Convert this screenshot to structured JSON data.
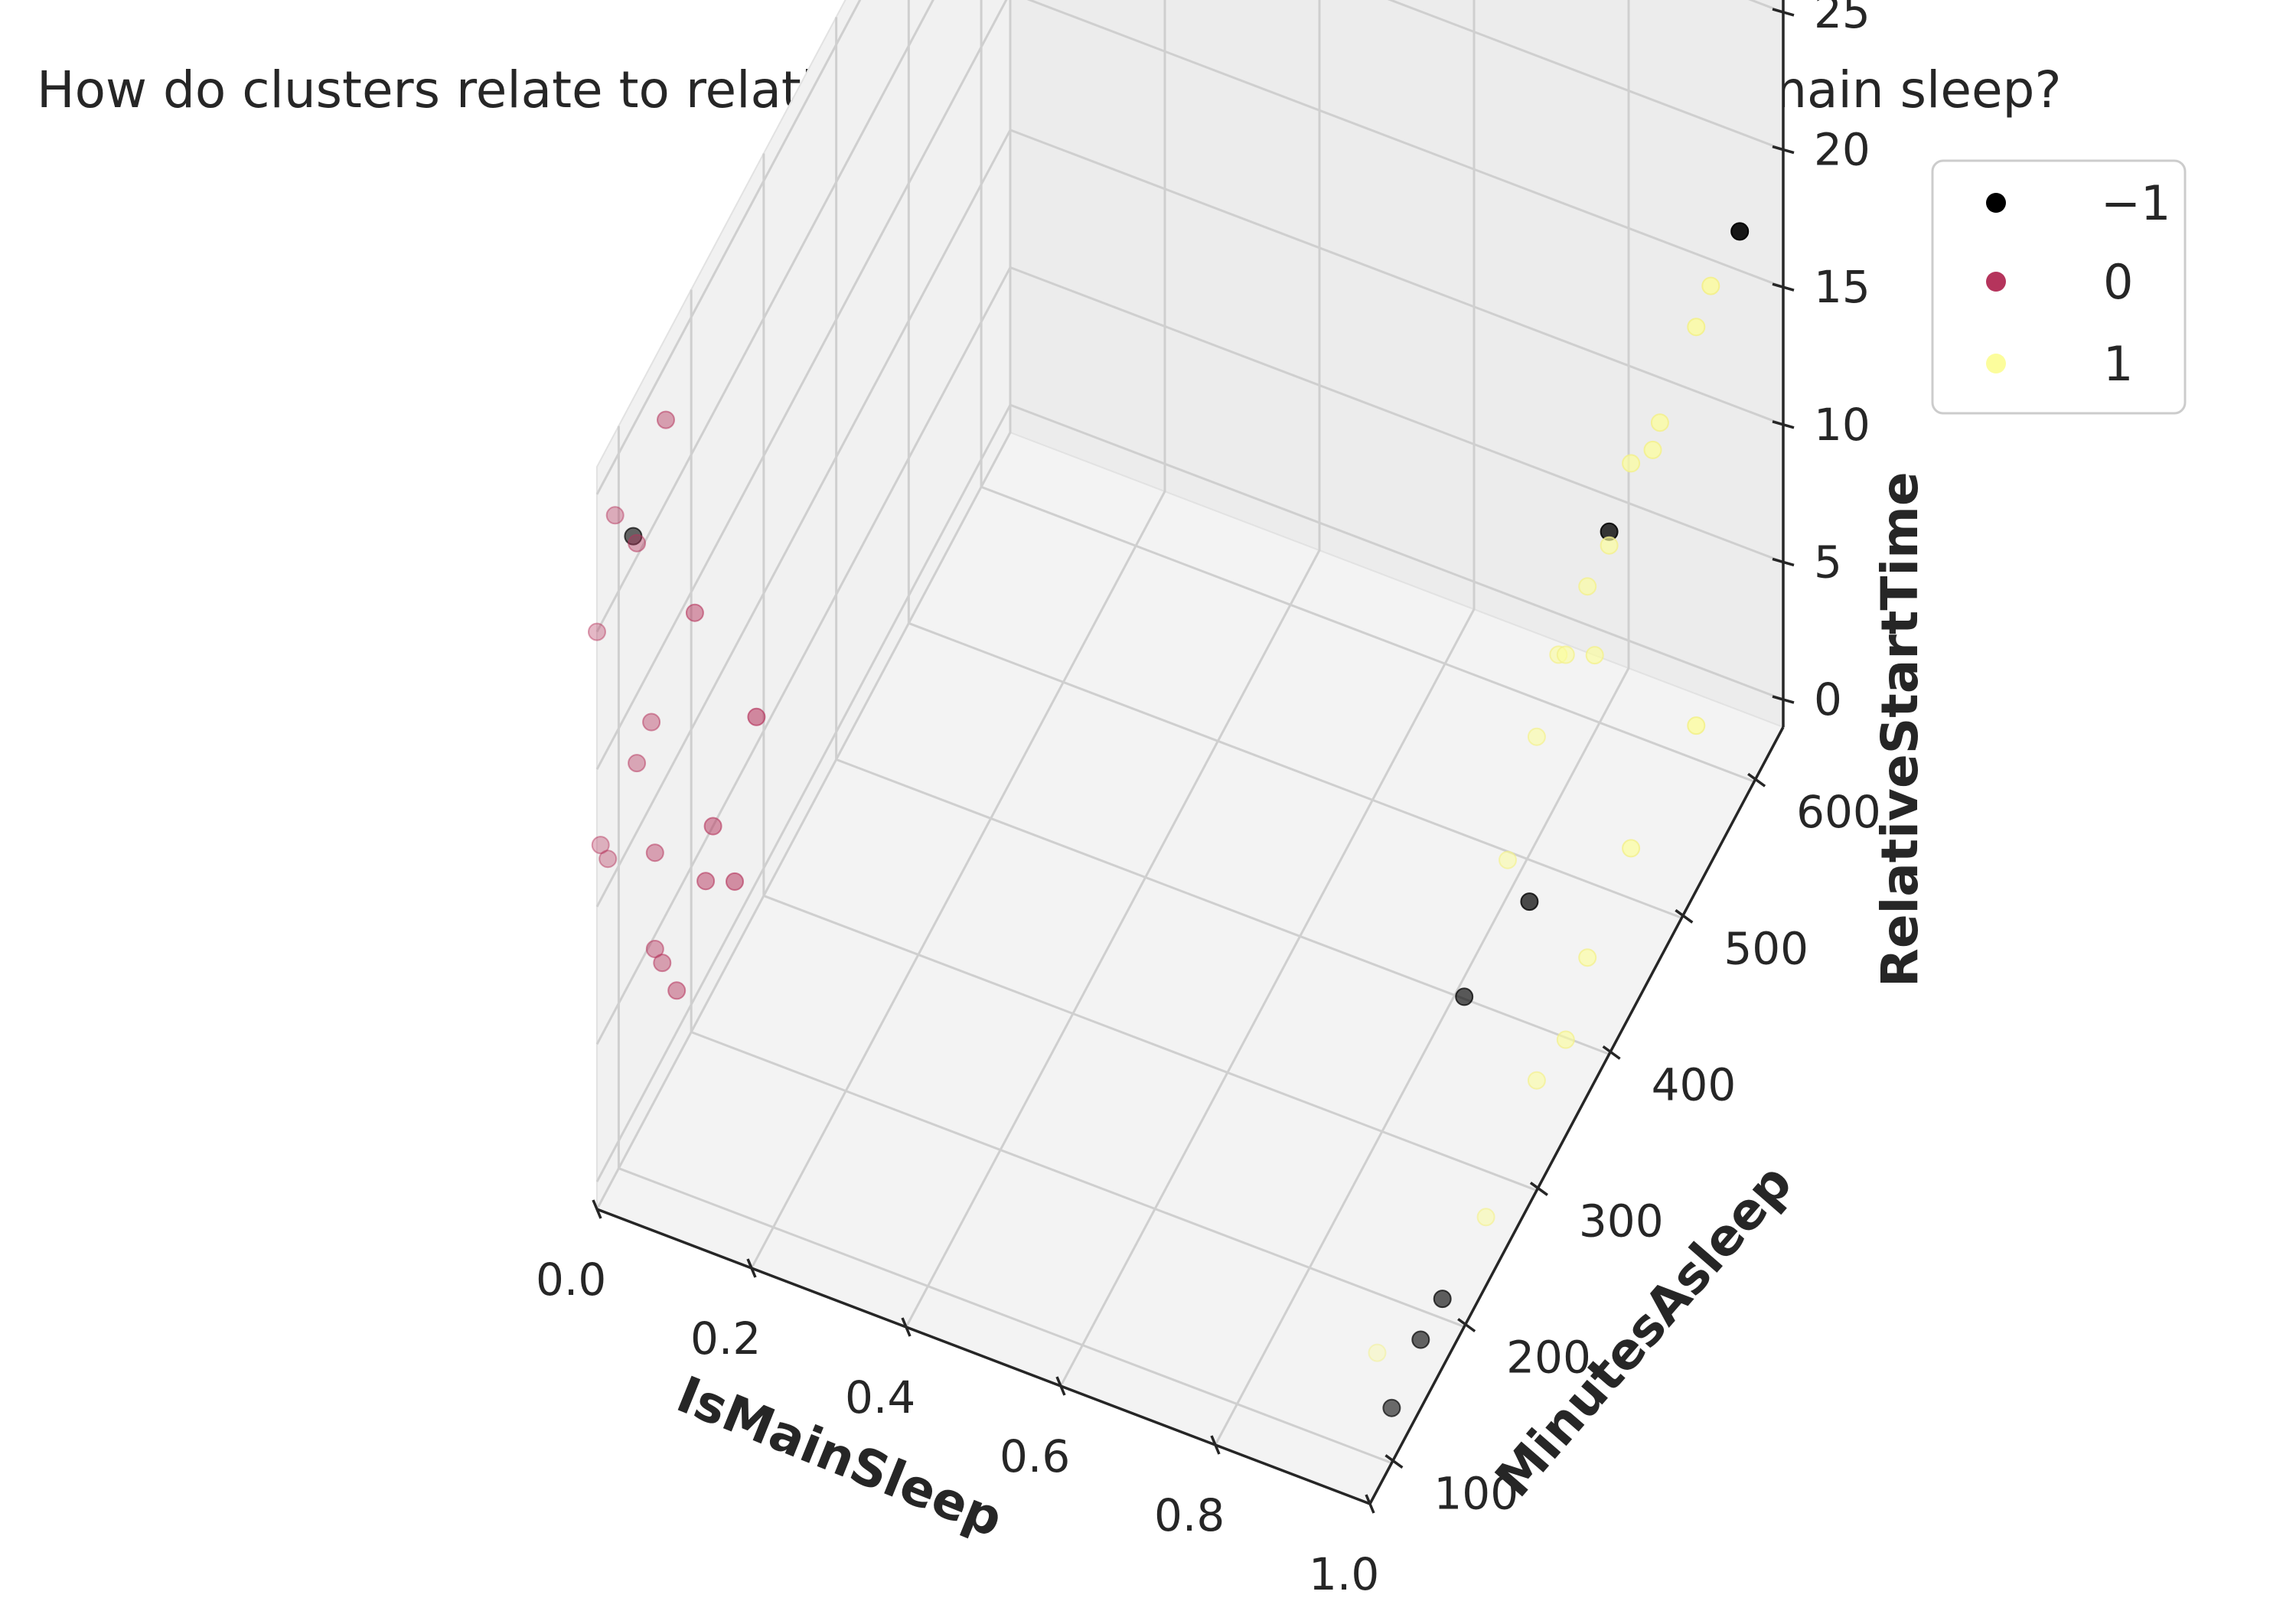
{
  "chart_data": {
    "type": "scatter",
    "title": "How do clusters relate to relative start time, minutes asleep, and is main sleep?",
    "xlabel": "IsMainSleep",
    "ylabel": "MinutesAsleep",
    "zlabel": "RelativeStartTime",
    "xlim": [
      0.0,
      1.0
    ],
    "ylim": [
      70,
      640
    ],
    "zlim": [
      -1,
      26
    ],
    "x_ticks": [
      "0.0",
      "0.2",
      "0.4",
      "0.6",
      "0.8",
      "1.0"
    ],
    "y_ticks": [
      "100",
      "200",
      "300",
      "400",
      "500",
      "600"
    ],
    "z_ticks": [
      "0",
      "5",
      "10",
      "15",
      "20",
      "25"
    ],
    "grid": true,
    "legend_position": "top-right",
    "series": [
      {
        "name": "−1",
        "color": "#000000",
        "points": [
          {
            "x": 0.0,
            "y": 120,
            "z": 21
          },
          {
            "x": 1.0,
            "y": 580,
            "z": 20
          },
          {
            "x": 1.0,
            "y": 400,
            "z": 18
          },
          {
            "x": 1.0,
            "y": 200,
            "z": 11
          },
          {
            "x": 1.0,
            "y": 290,
            "z": 10
          },
          {
            "x": 1.0,
            "y": 170,
            "z": 1.5
          },
          {
            "x": 1.0,
            "y": 140,
            "z": 1.5
          },
          {
            "x": 1.0,
            "y": 100,
            "z": 1
          }
        ]
      },
      {
        "name": "0",
        "color": "#b5345c",
        "points": [
          {
            "x": 0.0,
            "y": 95,
            "z": 23
          },
          {
            "x": 0.0,
            "y": 165,
            "z": 23
          },
          {
            "x": 0.0,
            "y": 70,
            "z": 20
          },
          {
            "x": 0.0,
            "y": 125,
            "z": 20.5
          },
          {
            "x": 0.0,
            "y": 145,
            "z": 13
          },
          {
            "x": 0.0,
            "y": 205,
            "z": 14
          },
          {
            "x": 0.0,
            "y": 125,
            "z": 12.5
          },
          {
            "x": 0.0,
            "y": 75,
            "z": 12
          },
          {
            "x": 0.0,
            "y": 85,
            "z": 11
          },
          {
            "x": 0.0,
            "y": 150,
            "z": 8
          },
          {
            "x": 0.0,
            "y": 290,
            "z": 6
          },
          {
            "x": 0.0,
            "y": 230,
            "z": 5
          },
          {
            "x": 0.0,
            "y": 220,
            "z": 3.5
          },
          {
            "x": 0.0,
            "y": 150,
            "z": 4.5
          },
          {
            "x": 0.0,
            "y": 160,
            "z": 3.5
          },
          {
            "x": 0.0,
            "y": 180,
            "z": 1.5
          },
          {
            "x": 0.0,
            "y": 260,
            "z": 1.5
          }
        ]
      },
      {
        "name": "1",
        "color": "#fcfd9c",
        "points": [
          {
            "x": 1.0,
            "y": 540,
            "z": 20
          },
          {
            "x": 1.0,
            "y": 520,
            "z": 19.5
          },
          {
            "x": 1.0,
            "y": 470,
            "z": 18.5
          },
          {
            "x": 1.0,
            "y": 430,
            "z": 19
          },
          {
            "x": 1.0,
            "y": 400,
            "z": 17.5
          },
          {
            "x": 1.0,
            "y": 370,
            "z": 17.5
          },
          {
            "x": 1.0,
            "y": 330,
            "z": 17
          },
          {
            "x": 1.0,
            "y": 460,
            "z": 18
          },
          {
            "x": 1.0,
            "y": 340,
            "z": 16.5
          },
          {
            "x": 1.0,
            "y": 300,
            "z": 15.5
          },
          {
            "x": 1.0,
            "y": 380,
            "z": 14.5
          },
          {
            "x": 1.0,
            "y": 260,
            "z": 13
          },
          {
            "x": 1.0,
            "y": 80,
            "z": 4
          },
          {
            "x": 1.0,
            "y": 520,
            "z": 5
          },
          {
            "x": 1.0,
            "y": 430,
            "z": 5
          },
          {
            "x": 1.0,
            "y": 370,
            "z": 4
          },
          {
            "x": 1.0,
            "y": 300,
            "z": 3
          },
          {
            "x": 1.0,
            "y": 340,
            "z": 2.5
          },
          {
            "x": 1.0,
            "y": 230,
            "z": 1.5
          }
        ]
      }
    ]
  }
}
